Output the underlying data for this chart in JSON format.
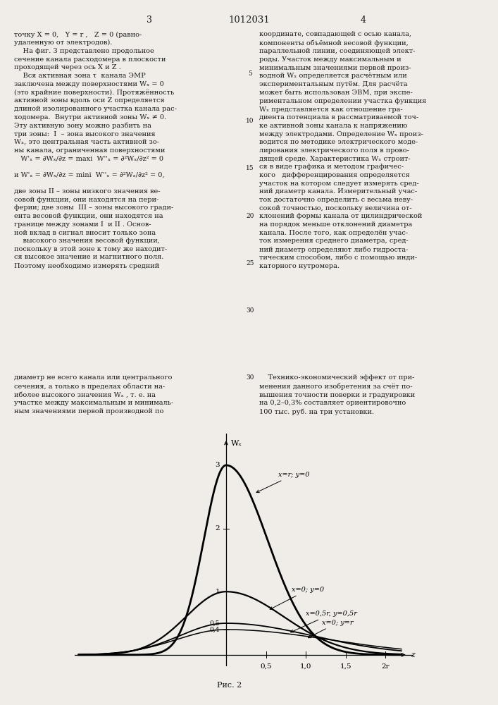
{
  "title": "1012031",
  "page_left": "3",
  "page_right": "4",
  "fig_label": "Рис. 2",
  "background": "#f0ede8",
  "text_color": "#1a1a1a",
  "figsize": [
    7.07,
    10.0
  ],
  "dpi": 100,
  "left_col_lines": [
    "точку X = 0,   Y = r ,   Z = 0 (равно-",
    "удаленную от электродов).",
    "    На фиг. 3 представлено продольное",
    "сечение канала расходомера в плоскости",
    "проходящей через ось X и Z .",
    "    Вся активная зона τ  канала ЭМР",
    "заключена между поверхностями Wₓ = 0",
    "(это крайние поверхности). Протяжённость",
    "активной зоны вдоль оси Z определяется",
    "длиной изолированного участка канала рас-",
    "ходомера.  Внутри активной зоны Wₓ ≠ 0.",
    "Эту активную зону можно разбить на",
    "три зоны:  І  – зона высокого значения",
    "Wₓ, это центральная часть активной зо-",
    "ны канала, ограниченная поверхностями",
    "   W'ₓ = ∂Wₓ/∂z = maxі  W''ₓ = ∂²Wₓ/∂z² = 0",
    "",
    "и W'ₓ = ∂Wₓ/∂z = minі  W''ₓ = ∂²Wₓ/∂z² = 0,",
    "",
    "две зоны II – зоны низкого значения ве-",
    "совой функции, они находятся на пери-",
    "ферии; две зоны  III – зоны высокого гради-",
    "ента весовой функции, они находятся на",
    "границе между зонами І  и II . Основ-",
    "ной вклад в сигнал вносит только зона",
    "    высокого значения весовой функции,",
    "поскольку в этой зоне к тому же находит-",
    "ся высокое значение и магнитного поля.",
    "Поэтому необходимо измерять средний"
  ],
  "right_col_lines": [
    "координате, совпадающей с осью канала,",
    "компоненты объёмной весовой функции,",
    "параллельной линии, соединяющей элект-",
    "роды. Участок между максимальным и",
    "минимальным значениями первой произ-",
    "водной Wₓ определяется расчётным или",
    "экспериментальным путём. Для расчёта",
    "может быть использован ЭВМ, при экспе-",
    "риментальном определении участка функция",
    "Wₓ представляется как отношение гра-",
    "диента потенциала в рассматриваемой точ-",
    "ке активной зоны канала к напряжению",
    "между электродами. Определение Wₓ произ-",
    "водится по методике электрического моде-",
    "лирования электрического поля в прово-",
    "дящей среде. Характеристика Wₓ строит-",
    "ся в виде графика и методом графичес-",
    "кого   дифференцирования определяется",
    "участок на котором следует измерять сред-",
    "ний диаметр канала. Измерительный учас-",
    "ток достаточно определить с весьма неву-",
    "сокой точностью, поскольку величина от-",
    "клонений формы канала от цилиндрической",
    "на порядок меньше отклонений диаметра",
    "канала. После того, как определён учас-",
    "ток измерения среднего диаметра, сред-",
    "ний диаметр определяют либо гидроста-",
    "тическим способом, либо с помощью инди-",
    "каторного нутромера."
  ],
  "bottom_left_lines": [
    "диаметр не всего канала или центрального",
    "сечения, а только в пределах области на-",
    "иболее высокого значения Wₓ , т. е. на",
    "участке между максимальным и минималь-",
    "ным значениями первой производной по"
  ],
  "bottom_right_lines": [
    "    Технико-экономический эффект от при-",
    "менения данного изобретения за счёт по-",
    "вышения точности поверки и градуировки",
    "на 0,2–0,3% составляет ориентировочно",
    "100 тыс. руб. на три установки."
  ],
  "line_numbers": [
    "5",
    "10",
    "15",
    "20",
    "25",
    "30"
  ],
  "curve_labels": [
    "x=r; y=0",
    "x=0; y=0",
    "x=0,5r, y=0,5r",
    "x=0; y=r"
  ],
  "curve_peaks": [
    3.0,
    1.0,
    0.5,
    0.4
  ],
  "curve_wl": [
    0.28,
    0.5,
    0.58,
    0.62
  ],
  "curve_wr": [
    0.52,
    0.72,
    1.08,
    1.28
  ],
  "curve_lw": [
    2.0,
    1.6,
    1.3,
    1.1
  ],
  "xlim": [
    -1.9,
    2.35
  ],
  "ylim": [
    -0.18,
    3.5
  ],
  "ytick_labels": [
    "1",
    "2",
    "3",
    "0,5",
    "0,4"
  ],
  "ytick_values": [
    1,
    2,
    3,
    0.5,
    0.4
  ],
  "xtick_labels": [
    "0,5",
    "1,0",
    "1,5",
    "2r"
  ],
  "xtick_values": [
    0.5,
    1.0,
    1.5,
    2.0
  ]
}
